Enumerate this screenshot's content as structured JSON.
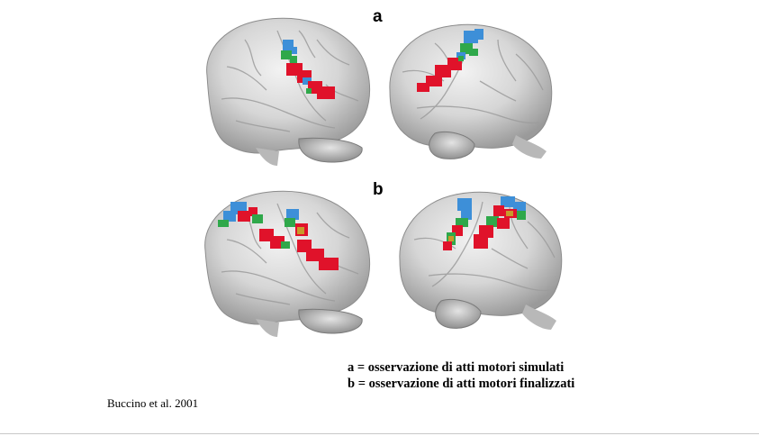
{
  "panels": {
    "a_label": "a",
    "b_label": "b"
  },
  "legend": {
    "line_a": "a = osservazione di atti motori simulati",
    "line_b": "b = osservazione di atti motori finalizzati"
  },
  "citation": "Buccino et al. 2001",
  "colors": {
    "activation_red": "#e0122a",
    "activation_green": "#2fa84a",
    "activation_blue": "#3d8fd8",
    "brain_gray": "#d4d4d4"
  }
}
